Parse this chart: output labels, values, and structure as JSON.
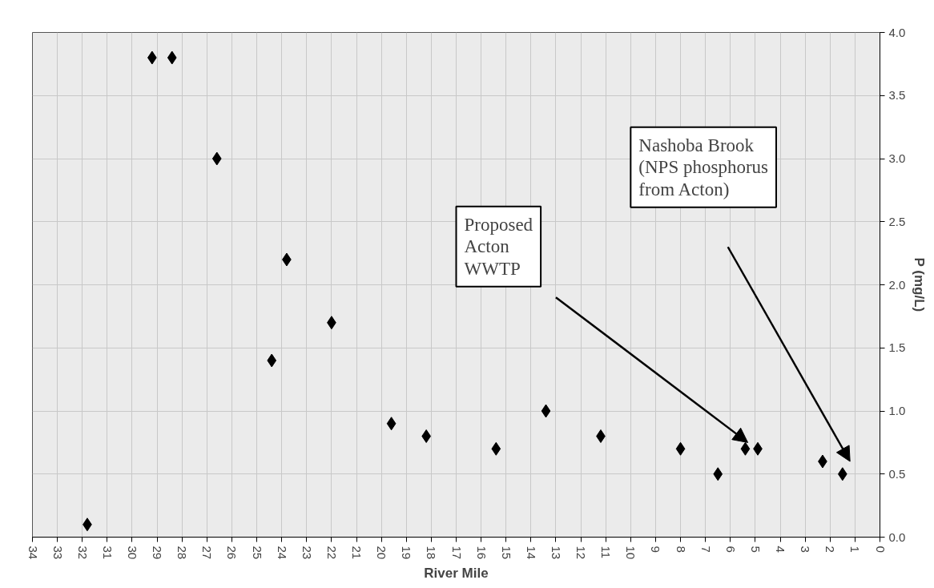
{
  "chart_data": {
    "type": "scatter",
    "xlabel": "River Mile",
    "ylabel": "P (mg/L)",
    "x": [
      31.8,
      29.2,
      28.4,
      26.6,
      24.4,
      23.8,
      22.0,
      19.6,
      18.2,
      15.4,
      13.4,
      11.2,
      8.0,
      6.5,
      5.4,
      4.9,
      2.3,
      1.5
    ],
    "series": [
      {
        "color": "#000000",
        "values": [
          0.1,
          3.8,
          3.8,
          3.0,
          1.4,
          2.2,
          1.7,
          0.9,
          0.8,
          0.7,
          1.0,
          0.8,
          0.7,
          0.5,
          0.7,
          0.7,
          0.6,
          0.5
        ]
      }
    ],
    "xlim": [
      34,
      0
    ],
    "xticks": [
      34,
      33,
      32,
      31,
      30,
      29,
      28,
      27,
      26,
      25,
      24,
      23,
      22,
      21,
      20,
      19,
      18,
      17,
      16,
      15,
      14,
      13,
      12,
      11,
      10,
      9,
      8,
      7,
      6,
      5,
      4,
      3,
      2,
      1,
      0
    ],
    "ylim": [
      0,
      4
    ],
    "yticks": [
      {
        "value": 0,
        "label": "0.0"
      },
      0.5,
      {
        "value": 1,
        "label": "1.0"
      },
      1.5,
      {
        "value": 2,
        "label": "2.0"
      },
      2.5,
      {
        "value": 3,
        "label": "3.0"
      },
      3.5,
      {
        "value": 4,
        "label": "4.0"
      }
    ],
    "annotations": [
      "Proposed\nActon\nWWTP",
      "Nashoba Brook\n(NPS phosphorus\nfrom Acton)"
    ],
    "grid": true,
    "marker": "diamond"
  }
}
